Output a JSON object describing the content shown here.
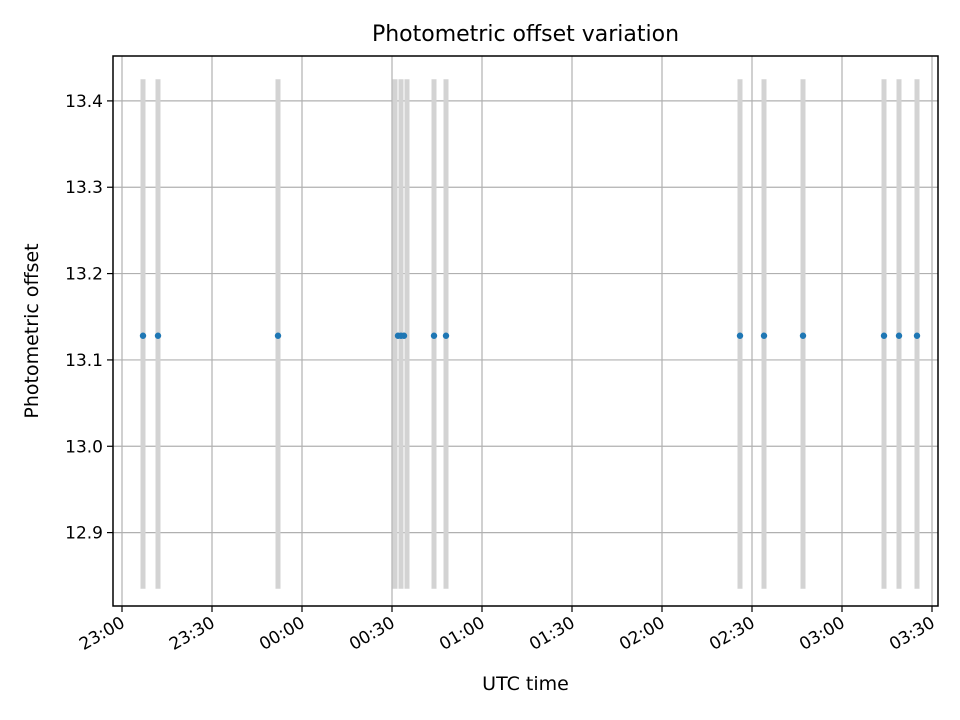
{
  "chart_data": {
    "type": "scatter",
    "title": "Photometric offset variation",
    "xlabel": "UTC time",
    "ylabel": "Photometric offset",
    "x_ticks": [
      "23:00",
      "23:30",
      "00:00",
      "00:30",
      "01:00",
      "01:30",
      "02:00",
      "02:30",
      "03:00",
      "03:30"
    ],
    "x_range": [
      "22:57",
      "03:32"
    ],
    "y_ticks": [
      "12.9",
      "13.0",
      "13.1",
      "13.2",
      "13.3",
      "13.4"
    ],
    "ylim": [
      12.815,
      13.452
    ],
    "grid": true,
    "series": [
      {
        "marker": "dot",
        "color": "#1f77b4",
        "points": [
          {
            "x": "23:07",
            "y": 13.128
          },
          {
            "x": "23:12",
            "y": 13.128
          },
          {
            "x": "23:52",
            "y": 13.128
          },
          {
            "x": "00:32",
            "y": 13.128
          },
          {
            "x": "00:33",
            "y": 13.128
          },
          {
            "x": "00:34",
            "y": 13.128
          },
          {
            "x": "00:44",
            "y": 13.128
          },
          {
            "x": "00:48",
            "y": 13.128
          },
          {
            "x": "02:26",
            "y": 13.128
          },
          {
            "x": "02:34",
            "y": 13.128
          },
          {
            "x": "02:47",
            "y": 13.128
          },
          {
            "x": "03:14",
            "y": 13.128
          },
          {
            "x": "03:19",
            "y": 13.128
          },
          {
            "x": "03:25",
            "y": 13.128
          }
        ]
      }
    ],
    "vertical_bands": {
      "color": "#d3d3d3",
      "y_range": [
        12.835,
        13.425
      ],
      "x": [
        "23:07",
        "23:12",
        "23:52",
        "00:31",
        "00:33",
        "00:35",
        "00:44",
        "00:48",
        "02:26",
        "02:34",
        "02:47",
        "03:14",
        "03:19",
        "03:25"
      ]
    }
  }
}
